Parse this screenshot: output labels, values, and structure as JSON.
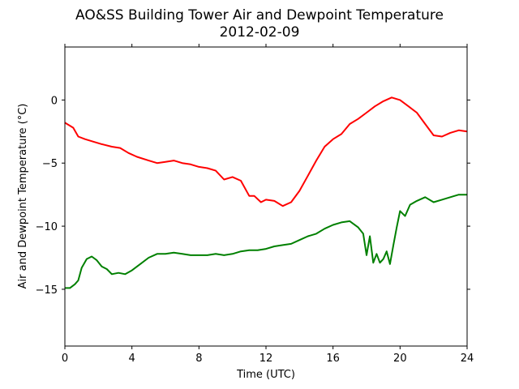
{
  "chart_data": {
    "type": "line",
    "title": "AO&SS Building Tower Air and Dewpoint Temperature",
    "subtitle": "2012-02-09",
    "xlabel": "Time (UTC)",
    "ylabel": "Air and Dewpoint Temperature (°C)",
    "xlim": [
      0,
      24
    ],
    "ylim": [
      -19.5,
      4.2
    ],
    "xticks": [
      0,
      4,
      8,
      12,
      16,
      20,
      24
    ],
    "yticks": [
      -15,
      -10,
      -5,
      0
    ],
    "grid": false,
    "legend": "none",
    "series": [
      {
        "color": "#ff0000",
        "x": [
          0,
          0.5,
          0.8,
          1.2,
          1.7,
          2.2,
          2.8,
          3.3,
          3.8,
          4.3,
          5.0,
          5.5,
          6.0,
          6.5,
          7.0,
          7.5,
          8.0,
          8.5,
          9.0,
          9.5,
          10.0,
          10.5,
          11.0,
          11.3,
          11.7,
          12.0,
          12.5,
          13.0,
          13.5,
          14.0,
          14.5,
          15.0,
          15.5,
          16.0,
          16.5,
          17.0,
          17.5,
          18.0,
          18.5,
          19.0,
          19.5,
          20.0,
          20.5,
          21.0,
          21.5,
          22.0,
          22.5,
          23.0,
          23.5,
          24.0
        ],
        "y": [
          -1.8,
          -2.2,
          -2.9,
          -3.1,
          -3.3,
          -3.5,
          -3.7,
          -3.8,
          -4.2,
          -4.5,
          -4.8,
          -5.0,
          -4.9,
          -4.8,
          -5.0,
          -5.1,
          -5.3,
          -5.4,
          -5.6,
          -6.3,
          -6.1,
          -6.4,
          -7.6,
          -7.6,
          -8.1,
          -7.9,
          -8.0,
          -8.4,
          -8.1,
          -7.2,
          -6.0,
          -4.8,
          -3.7,
          -3.1,
          -2.7,
          -1.9,
          -1.5,
          -1.0,
          -0.5,
          -0.1,
          0.2,
          0.0,
          -0.5,
          -1.0,
          -1.9,
          -2.8,
          -2.9,
          -2.6,
          -2.4,
          -2.5
        ]
      },
      {
        "color": "#008000",
        "x": [
          0,
          0.3,
          0.6,
          0.8,
          1.0,
          1.3,
          1.6,
          1.9,
          2.2,
          2.5,
          2.8,
          3.2,
          3.6,
          4.0,
          4.5,
          5.0,
          5.5,
          6.0,
          6.5,
          7.0,
          7.5,
          8.0,
          8.5,
          9.0,
          9.5,
          10.0,
          10.5,
          11.0,
          11.5,
          12.0,
          12.5,
          13.0,
          13.5,
          14.0,
          14.5,
          15.0,
          15.5,
          16.0,
          16.5,
          17.0,
          17.5,
          17.8,
          18.0,
          18.2,
          18.4,
          18.6,
          18.8,
          19.0,
          19.2,
          19.4,
          19.6,
          19.8,
          20.0,
          20.3,
          20.6,
          21.0,
          21.5,
          22.0,
          22.5,
          23.0,
          23.5,
          24.0
        ],
        "y": [
          -14.9,
          -14.9,
          -14.6,
          -14.3,
          -13.3,
          -12.6,
          -12.4,
          -12.7,
          -13.2,
          -13.4,
          -13.8,
          -13.7,
          -13.8,
          -13.5,
          -13.0,
          -12.5,
          -12.2,
          -12.2,
          -12.1,
          -12.2,
          -12.3,
          -12.3,
          -12.3,
          -12.2,
          -12.3,
          -12.2,
          -12.0,
          -11.9,
          -11.9,
          -11.8,
          -11.6,
          -11.5,
          -11.4,
          -11.1,
          -10.8,
          -10.6,
          -10.2,
          -9.9,
          -9.7,
          -9.6,
          -10.1,
          -10.6,
          -12.3,
          -10.8,
          -12.9,
          -12.2,
          -12.9,
          -12.6,
          -12.0,
          -13.0,
          -11.5,
          -10.1,
          -8.8,
          -9.2,
          -8.3,
          -8.0,
          -7.7,
          -8.1,
          -7.9,
          -7.7,
          -7.5,
          -7.5
        ]
      }
    ]
  }
}
